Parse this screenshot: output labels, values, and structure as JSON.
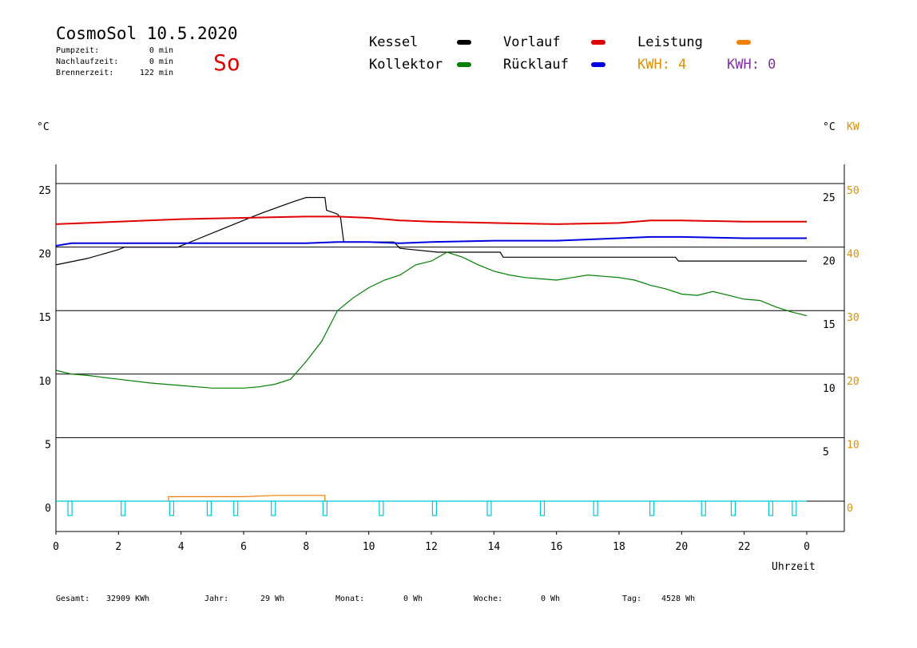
{
  "header": {
    "title": "CosmoSol 10.5.2020",
    "day": "So",
    "stats": [
      {
        "label": "Pumpzeit:",
        "value": "0 min"
      },
      {
        "label": "Nachlaufzeit:",
        "value": "0 min"
      },
      {
        "label": "Brennerzeit:",
        "value": "122 min"
      }
    ]
  },
  "legend": {
    "kessel": {
      "label": "Kessel",
      "color": "#000000"
    },
    "kollektor": {
      "label": "Kollektor",
      "color": "#008000"
    },
    "vorlauf": {
      "label": "Vorlauf",
      "color": "#e00000"
    },
    "ruecklauf": {
      "label": "Rücklauf",
      "color": "#0000e0"
    },
    "leistung": {
      "label": "Leistung",
      "color": "#f08000"
    },
    "kwh_orange": "KWH: 4",
    "kwh_purple": "KWH: 0",
    "kwh_orange_color": "#e09000",
    "kwh_purple_color": "#8030a0"
  },
  "footer": {
    "gesamt_label": "Gesamt:",
    "gesamt_value": "32909 KWh",
    "jahr_label": "Jahr:",
    "jahr_value": "29 Wh",
    "monat_label": "Monat:",
    "monat_value": "0 Wh",
    "woche_label": "Woche:",
    "woche_value": "0 Wh",
    "tag_label": "Tag:",
    "tag_value": "4528 Wh"
  },
  "chart_data": {
    "type": "line",
    "xlabel": "Uhrzeit",
    "left_unit": "°C",
    "right_unit": "°C",
    "right_unit2": "KW",
    "x_ticks": [
      "0",
      "2",
      "4",
      "6",
      "8",
      "10",
      "12",
      "14",
      "16",
      "18",
      "20",
      "22",
      "0"
    ],
    "xlim": [
      0,
      24
    ],
    "ylim": [
      -2,
      27
    ],
    "left_ticks": [
      25,
      20,
      15,
      10,
      5,
      0
    ],
    "right_ticks": [
      25,
      20,
      15,
      10,
      5
    ],
    "kw_ticks": [
      50,
      40,
      30,
      20,
      10,
      0
    ],
    "kw_ticks_color": "#e09000",
    "grid_y": [
      25,
      20,
      15,
      10,
      5,
      0
    ],
    "series": [
      {
        "name": "Kessel",
        "color": "#000000",
        "x": [
          0,
          1,
          2,
          2.2,
          3.9,
          4.5,
          5.5,
          6.5,
          7.5,
          8.0,
          8.6,
          8.65,
          9.0,
          9.1,
          9.2,
          10.8,
          11.0,
          12.2,
          14.2,
          14.3,
          19.8,
          19.9,
          24
        ],
        "y": [
          18.6,
          19.1,
          19.8,
          20.0,
          20.0,
          20.6,
          21.6,
          22.6,
          23.5,
          23.9,
          23.9,
          22.9,
          22.6,
          22.3,
          20.4,
          20.4,
          19.9,
          19.6,
          19.6,
          19.2,
          19.2,
          18.9,
          18.9
        ]
      },
      {
        "name": "Vorlauf",
        "color": "#e00000",
        "x": [
          0,
          2,
          4,
          6,
          8,
          9,
          10,
          11,
          12,
          14,
          16,
          18,
          19,
          20,
          22,
          24
        ],
        "y": [
          21.8,
          22.0,
          22.2,
          22.3,
          22.4,
          22.4,
          22.3,
          22.1,
          22.0,
          21.9,
          21.8,
          21.9,
          22.1,
          22.1,
          22.0,
          22.0
        ]
      },
      {
        "name": "Rücklauf",
        "color": "#0000e0",
        "x": [
          0,
          0.5,
          1,
          2,
          4,
          6,
          8,
          9,
          10,
          11,
          12,
          14,
          16,
          18,
          19,
          20,
          22,
          24
        ],
        "y": [
          20.1,
          20.3,
          20.3,
          20.3,
          20.3,
          20.3,
          20.3,
          20.4,
          20.4,
          20.3,
          20.4,
          20.5,
          20.5,
          20.7,
          20.8,
          20.8,
          20.7,
          20.7
        ]
      },
      {
        "name": "Kollektor",
        "color": "#008000",
        "x": [
          0,
          0.5,
          1,
          2,
          3,
          4,
          4.5,
          5,
          5.5,
          6,
          6.5,
          7,
          7.5,
          8,
          8.5,
          9,
          9.5,
          10,
          10.5,
          11,
          11.5,
          12,
          12.5,
          13,
          13.5,
          14,
          14.5,
          15,
          15.5,
          16,
          16.5,
          17,
          17.5,
          18,
          18.5,
          19,
          19.5,
          20,
          20.5,
          21,
          21.5,
          22,
          22.5,
          23,
          23.5,
          24
        ],
        "y": [
          10.3,
          10.0,
          9.9,
          9.6,
          9.3,
          9.1,
          9.0,
          8.9,
          8.9,
          8.9,
          9.0,
          9.2,
          9.6,
          11.0,
          12.6,
          15.0,
          16.0,
          16.8,
          17.4,
          17.8,
          18.6,
          18.9,
          19.6,
          19.2,
          18.6,
          18.1,
          17.8,
          17.6,
          17.5,
          17.4,
          17.6,
          17.8,
          17.7,
          17.6,
          17.4,
          17.0,
          16.7,
          16.3,
          16.2,
          16.5,
          16.2,
          15.9,
          15.8,
          15.3,
          14.9,
          14.6
        ]
      },
      {
        "name": "Leistung",
        "color": "#f08000",
        "x": [
          3.6,
          3.6,
          6,
          7,
          8.6,
          8.6
        ],
        "y": [
          0,
          0.35,
          0.35,
          0.45,
          0.45,
          0
        ]
      }
    ],
    "pump_pulses_x": [
      0.45,
      2.15,
      3.7,
      4.9,
      5.75,
      6.95,
      8.6,
      10.4,
      12.1,
      13.85,
      15.55,
      17.25,
      19.05,
      20.7,
      21.65,
      22.85,
      23.6
    ],
    "pump_color": "#00c8d8"
  }
}
